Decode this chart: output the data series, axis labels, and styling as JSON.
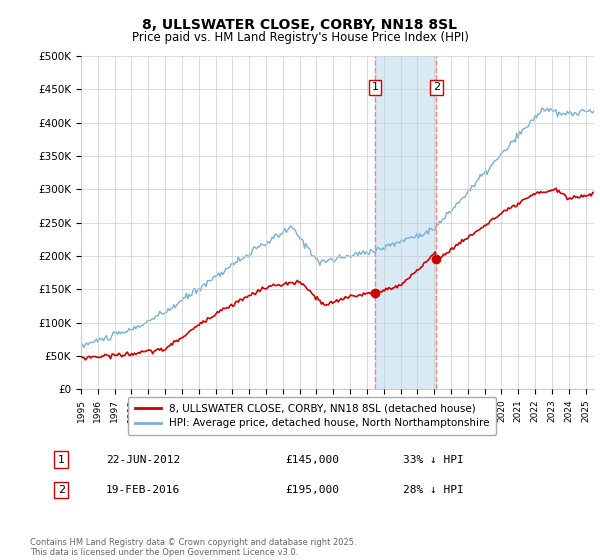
{
  "title": "8, ULLSWATER CLOSE, CORBY, NN18 8SL",
  "subtitle": "Price paid vs. HM Land Registry's House Price Index (HPI)",
  "ylabel_ticks": [
    "£0",
    "£50K",
    "£100K",
    "£150K",
    "£200K",
    "£250K",
    "£300K",
    "£350K",
    "£400K",
    "£450K",
    "£500K"
  ],
  "ylim": [
    0,
    500000
  ],
  "xlim_start": 1995.0,
  "xlim_end": 2025.5,
  "annotation1": {
    "label": "1",
    "date_str": "22-JUN-2012",
    "price": 145000,
    "pct": "33%",
    "x": 2012.47
  },
  "annotation2": {
    "label": "2",
    "date_str": "19-FEB-2016",
    "price": 195000,
    "pct": "28%",
    "x": 2016.13
  },
  "legend_red": "8, ULLSWATER CLOSE, CORBY, NN18 8SL (detached house)",
  "legend_blue": "HPI: Average price, detached house, North Northamptonshire",
  "footer": "Contains HM Land Registry data © Crown copyright and database right 2025.\nThis data is licensed under the Open Government Licence v3.0.",
  "table_rows": [
    {
      "num": "1",
      "date": "22-JUN-2012",
      "price": "£145,000",
      "pct": "33% ↓ HPI"
    },
    {
      "num": "2",
      "date": "19-FEB-2016",
      "price": "£195,000",
      "pct": "28% ↓ HPI"
    }
  ],
  "red_color": "#cc0000",
  "blue_color": "#7ab0d4",
  "shade_color": "#d8eaf5",
  "grid_color": "#cccccc",
  "bg_color": "#ffffff",
  "dashed_color": "#e88888"
}
